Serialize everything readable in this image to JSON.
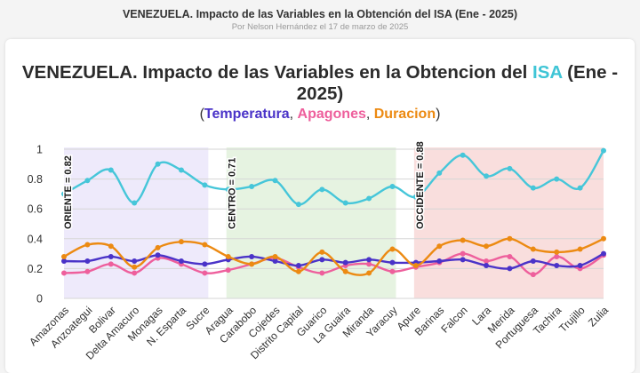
{
  "page": {
    "title": "VENEZUELA. Impacto de las Variables en la Obtención del ISA (Ene - 2025)",
    "byline_prefix": "Por",
    "author": "Nelson Hernández",
    "date_text": "el 17 de marzo de 2025"
  },
  "colors": {
    "isa": "#46c6d9",
    "temperatura": "#4a33c8",
    "apagones": "#ee5f9c",
    "duracion": "#ec8a12",
    "oriente_band": "#eeeafb",
    "centro_band": "#e6f3e1",
    "occidente_band": "#f9dedd"
  },
  "chart_data": {
    "type": "line",
    "title_parts": [
      "VENEZUELA. Impacto de las Variables en la Obtencion del ",
      "ISA",
      " (Ene - 2025)"
    ],
    "subtitle": {
      "open": "(",
      "temperatura": "Temperatura",
      "sep1": ", ",
      "apagones": "Apagones",
      "sep2": ", ",
      "duracion": "Duracion",
      "close": ")"
    },
    "categories": [
      "Amazonas",
      "Anzoategui",
      "Bolivar",
      "Delta Amacuro",
      "Monagas",
      "N. Esparta",
      "Sucre",
      "Aragua",
      "Carabobo",
      "Cojedes",
      "Distrito Capital",
      "Guarico",
      "La Guaira",
      "Miranda",
      "Yaracuy",
      "Apure",
      "Barinas",
      "Falcon",
      "Lara",
      "Merida",
      "Portuguesa",
      "Tachira",
      "Trujillo",
      "Zulia"
    ],
    "ylim": [
      0,
      1
    ],
    "yticks": [
      "0",
      "0.2",
      "0.4",
      "0.6",
      "0.8",
      "1"
    ],
    "series": [
      {
        "name": "ISA",
        "key": "isa",
        "values": [
          0.7,
          0.79,
          0.86,
          0.64,
          0.9,
          0.86,
          0.76,
          0.73,
          0.75,
          0.79,
          0.63,
          0.73,
          0.64,
          0.67,
          0.75,
          0.68,
          0.84,
          0.96,
          0.82,
          0.87,
          0.74,
          0.8,
          0.74,
          0.99
        ]
      },
      {
        "name": "Temperatura",
        "key": "temperatura",
        "values": [
          0.25,
          0.25,
          0.28,
          0.25,
          0.29,
          0.25,
          0.23,
          0.26,
          0.28,
          0.25,
          0.22,
          0.26,
          0.24,
          0.26,
          0.24,
          0.24,
          0.25,
          0.26,
          0.22,
          0.2,
          0.25,
          0.22,
          0.22,
          0.3
        ]
      },
      {
        "name": "Apagones",
        "key": "apagones",
        "values": [
          0.17,
          0.18,
          0.23,
          0.17,
          0.27,
          0.23,
          0.17,
          0.19,
          0.23,
          0.27,
          0.21,
          0.17,
          0.22,
          0.23,
          0.18,
          0.21,
          0.24,
          0.3,
          0.25,
          0.28,
          0.16,
          0.28,
          0.2,
          0.29
        ]
      },
      {
        "name": "Duracion",
        "key": "duracion",
        "values": [
          0.28,
          0.36,
          0.35,
          0.21,
          0.34,
          0.38,
          0.36,
          0.28,
          0.23,
          0.28,
          0.18,
          0.31,
          0.18,
          0.17,
          0.33,
          0.22,
          0.35,
          0.39,
          0.35,
          0.4,
          0.33,
          0.31,
          0.33,
          0.4
        ]
      }
    ],
    "regions": [
      {
        "label": "ORIENTE = 0.82",
        "start": "Amazonas",
        "end": "Sucre",
        "color_key": "oriente_band"
      },
      {
        "label": "CENTRO = 0.71",
        "start": "Aragua",
        "end": "Yaracuy",
        "color_key": "centro_band"
      },
      {
        "label": "OCCIDENTE = 0.88",
        "start": "Apure",
        "end": "Zulia",
        "color_key": "occidente_band"
      }
    ]
  }
}
